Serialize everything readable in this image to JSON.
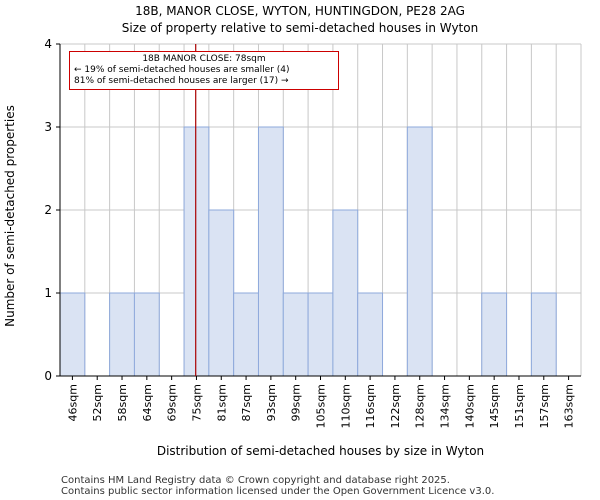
{
  "title_line1": "18B, MANOR CLOSE, WYTON, HUNTINGDON, PE28 2AG",
  "title_line2": "Size of property relative to semi-detached houses in Wyton",
  "footer_line1": "Contains HM Land Registry data © Crown copyright and database right 2025.",
  "footer_line2": "Contains public sector information licensed under the Open Government Licence v3.0.",
  "annotation": {
    "line1": "18B MANOR CLOSE: 78sqm",
    "line2": "← 19% of semi-detached houses are smaller (4)",
    "line3": "81% of semi-detached houses are larger (17) →"
  },
  "colors": {
    "bar_fill": "#dae3f3",
    "bar_stroke": "#8ea9db",
    "marker": "#aa0000",
    "grid": "#c8c8c8"
  },
  "chart_data": {
    "type": "bar",
    "title": "18B, MANOR CLOSE, WYTON, HUNTINGDON, PE28 2AG",
    "subtitle": "Size of property relative to semi-detached houses in Wyton",
    "xlabel": "Distribution of semi-detached houses by size in Wyton",
    "ylabel": "Number of semi-detached properties",
    "categories": [
      "46sqm",
      "52sqm",
      "58sqm",
      "64sqm",
      "69sqm",
      "75sqm",
      "81sqm",
      "87sqm",
      "93sqm",
      "99sqm",
      "105sqm",
      "110sqm",
      "116sqm",
      "122sqm",
      "128sqm",
      "134sqm",
      "140sqm",
      "145sqm",
      "151sqm",
      "157sqm",
      "163sqm"
    ],
    "values": [
      1,
      0,
      1,
      1,
      0,
      3,
      2,
      1,
      3,
      1,
      1,
      2,
      1,
      0,
      3,
      0,
      0,
      1,
      0,
      1,
      0
    ],
    "ylim": [
      0,
      4
    ],
    "yticks": [
      0,
      1,
      2,
      3,
      4
    ],
    "grid": true,
    "marker_value": 78,
    "marker_label": "18B MANOR CLOSE: 78sqm"
  }
}
